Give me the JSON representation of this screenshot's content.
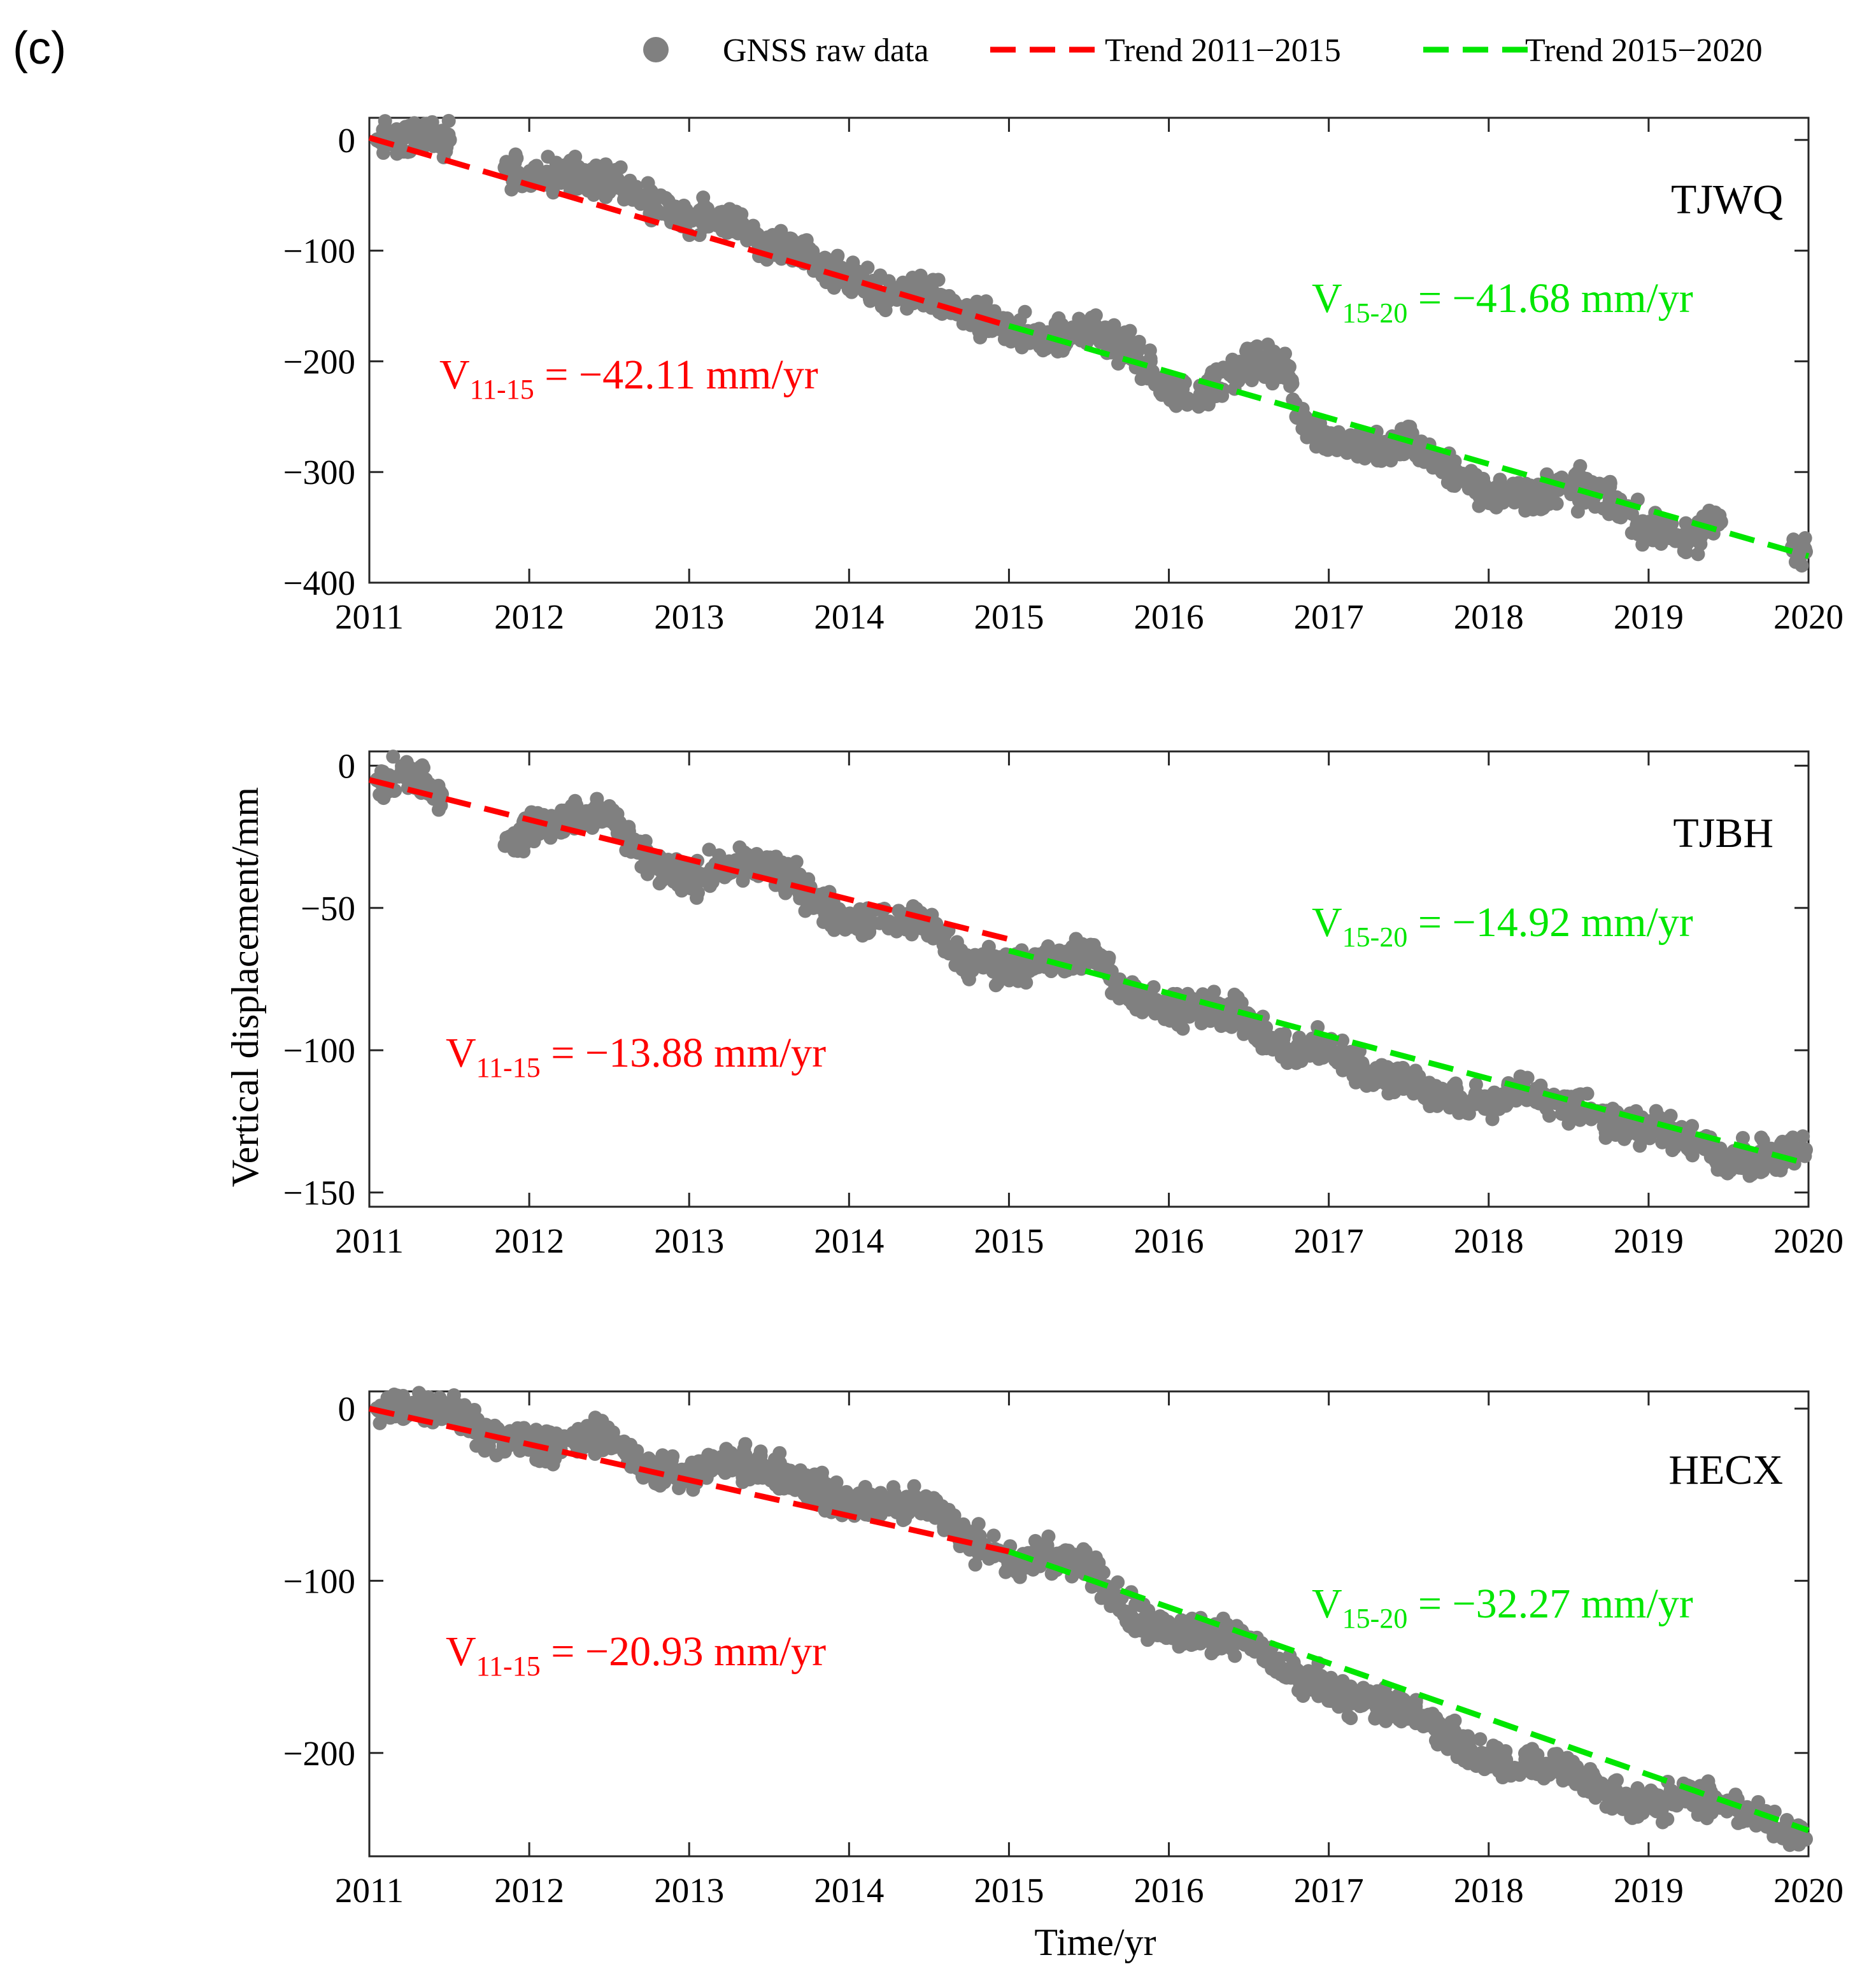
{
  "panel_label": "(c)",
  "colors": {
    "raw": "#808080",
    "trend_early": "#ff0000",
    "trend_late": "#00e600",
    "axis": "#262626"
  },
  "legend": [
    {
      "label": "GNSS raw data",
      "kind": "marker",
      "color": "#808080"
    },
    {
      "label": "Trend 2011−2015",
      "kind": "dash",
      "color": "#ff0000"
    },
    {
      "label": "Trend 2015−2020",
      "kind": "dash",
      "color": "#00e600"
    }
  ],
  "shared_axes": {
    "ylabel": "Vertical displacement/mm",
    "xlabel": "Time/yr",
    "xlim": [
      2011,
      2020
    ],
    "xticks": [
      2011,
      2012,
      2013,
      2014,
      2015,
      2016,
      2017,
      2018,
      2019,
      2020
    ]
  },
  "chart_data": [
    {
      "type": "scatter",
      "station": "TJWQ",
      "ylim": [
        -400,
        20
      ],
      "yticks": [
        0,
        -100,
        -200,
        -300,
        -400
      ],
      "ytick_labels": [
        "0",
        "−100",
        "−200",
        "−300",
        "−400"
      ],
      "series": [
        {
          "name": "GNSS raw data",
          "x": [
            2011.05,
            2011.2,
            2011.35,
            2011.5,
            2011.85,
            2012.0,
            2012.25,
            2012.5,
            2012.75,
            2013.0,
            2013.25,
            2013.5,
            2013.75,
            2014.0,
            2014.25,
            2014.5,
            2014.75,
            2015.0,
            2015.25,
            2015.5,
            2015.75,
            2016.0,
            2016.2,
            2016.4,
            2016.55,
            2016.75,
            2016.8,
            2017.0,
            2017.25,
            2017.5,
            2017.75,
            2018.0,
            2018.25,
            2018.5,
            2018.75,
            2019.0,
            2019.25,
            2019.45,
            2019.9,
            2019.98
          ],
          "y": [
            0,
            0,
            4,
            0,
            -25,
            -35,
            -30,
            -35,
            -55,
            -70,
            -75,
            -90,
            -105,
            -125,
            -140,
            -140,
            -160,
            -170,
            -180,
            -170,
            -190,
            -225,
            -230,
            -210,
            -200,
            -205,
            -250,
            -270,
            -280,
            -270,
            -300,
            -320,
            -320,
            -315,
            -320,
            -355,
            -360,
            -345,
            -368,
            -372
          ]
        },
        {
          "name": "Trend 2011−2015",
          "x": [
            2011.0,
            2015.0
          ],
          "y": [
            2,
            -168
          ]
        },
        {
          "name": "Trend 2015−2020",
          "x": [
            2015.0,
            2020.0
          ],
          "y": [
            -168,
            -376
          ]
        }
      ],
      "velocity_11_15": {
        "base": "V",
        "sub": "11-15",
        "text": "= −42.11 mm/yr"
      },
      "velocity_15_20": {
        "base": "V",
        "sub": "15-20",
        "text": "= −41.68 mm/yr"
      }
    },
    {
      "type": "scatter",
      "station": "TJBH",
      "ylim": [
        -155,
        5
      ],
      "yticks": [
        0,
        -50,
        -100,
        -150
      ],
      "ytick_labels": [
        "0",
        "−50",
        "−100",
        "−150"
      ],
      "series": [
        {
          "name": "GNSS raw data",
          "x": [
            2011.05,
            2011.2,
            2011.35,
            2011.45,
            2011.85,
            2012.0,
            2012.25,
            2012.5,
            2012.6,
            2012.75,
            2013.0,
            2013.25,
            2013.5,
            2013.75,
            2014.0,
            2014.25,
            2014.5,
            2014.75,
            2015.0,
            2015.25,
            2015.5,
            2015.75,
            2016.0,
            2016.25,
            2016.5,
            2016.75,
            2017.0,
            2017.25,
            2017.5,
            2017.75,
            2018.0,
            2018.25,
            2018.5,
            2018.75,
            2019.0,
            2019.25,
            2019.5,
            2019.75,
            2019.98
          ],
          "y": [
            -5,
            -3,
            -5,
            -10,
            -28,
            -22,
            -18,
            -17,
            -25,
            -35,
            -40,
            -35,
            -35,
            -45,
            -55,
            -55,
            -55,
            -70,
            -70,
            -70,
            -65,
            -80,
            -85,
            -85,
            -90,
            -100,
            -100,
            -108,
            -110,
            -118,
            -118,
            -115,
            -120,
            -125,
            -128,
            -130,
            -140,
            -138,
            -135
          ]
        },
        {
          "name": "Trend 2011−2015",
          "x": [
            2011.0,
            2015.0
          ],
          "y": [
            -5,
            -61
          ]
        },
        {
          "name": "Trend 2015−2020",
          "x": [
            2015.0,
            2020.0
          ],
          "y": [
            -65,
            -140
          ]
        }
      ],
      "velocity_11_15": {
        "base": "V",
        "sub": "11-15",
        "text": "= −13.88 mm/yr"
      },
      "velocity_15_20": {
        "base": "V",
        "sub": "15-20",
        "text": "= −14.92 mm/yr"
      }
    },
    {
      "type": "scatter",
      "station": "HECX",
      "ylim": [
        -260,
        10
      ],
      "yticks": [
        0,
        -100,
        -200
      ],
      "ytick_labels": [
        "0",
        "−100",
        "−200"
      ],
      "series": [
        {
          "name": "GNSS raw data",
          "x": [
            2011.05,
            2011.25,
            2011.5,
            2011.75,
            2012.0,
            2012.25,
            2012.5,
            2012.75,
            2013.0,
            2013.25,
            2013.5,
            2013.75,
            2014.0,
            2014.25,
            2014.5,
            2014.75,
            2015.0,
            2015.25,
            2015.5,
            2015.75,
            2016.0,
            2016.25,
            2016.5,
            2016.75,
            2017.0,
            2017.25,
            2017.5,
            2017.75,
            2018.0,
            2018.25,
            2018.5,
            2018.75,
            2019.0,
            2019.25,
            2019.5,
            2019.75,
            2019.98
          ],
          "y": [
            0,
            2,
            0,
            -15,
            -22,
            -18,
            -15,
            -35,
            -40,
            -30,
            -35,
            -45,
            -55,
            -55,
            -55,
            -75,
            -90,
            -85,
            -90,
            -120,
            -130,
            -130,
            -135,
            -155,
            -165,
            -170,
            -175,
            -190,
            -205,
            -205,
            -210,
            -225,
            -230,
            -225,
            -230,
            -240,
            -250
          ]
        },
        {
          "name": "Trend 2011−2015",
          "x": [
            2011.0,
            2015.0
          ],
          "y": [
            0,
            -83
          ]
        },
        {
          "name": "Trend 2015−2020",
          "x": [
            2015.0,
            2020.0
          ],
          "y": [
            -83,
            -245
          ]
        }
      ],
      "velocity_11_15": {
        "base": "V",
        "sub": "11-15",
        "text": "= −20.93 mm/yr"
      },
      "velocity_15_20": {
        "base": "V",
        "sub": "15-20",
        "text": "= −32.27 mm/yr"
      }
    }
  ]
}
